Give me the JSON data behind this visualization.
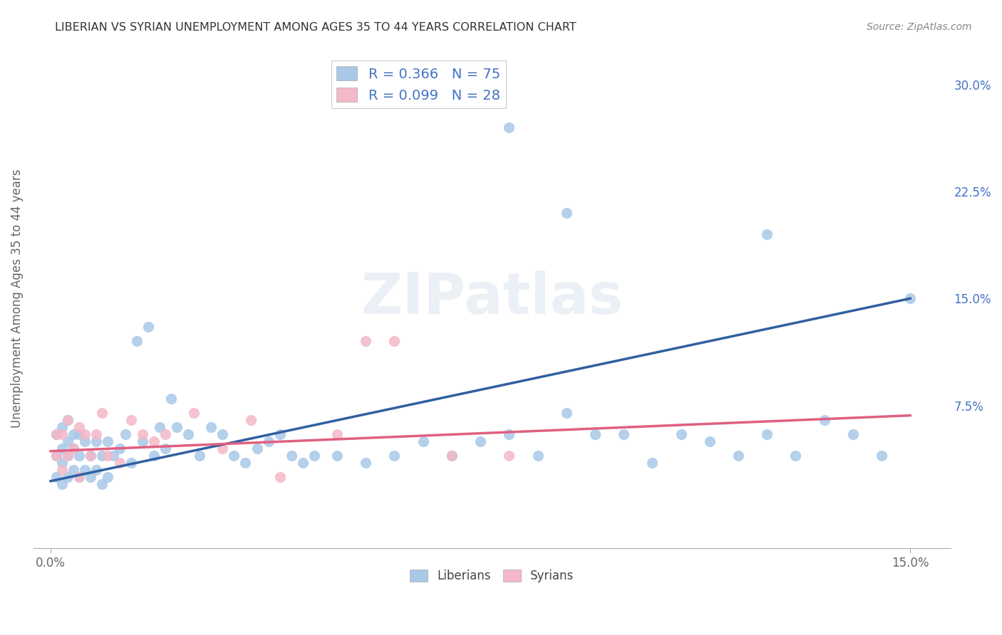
{
  "title": "LIBERIAN VS SYRIAN UNEMPLOYMENT AMONG AGES 35 TO 44 YEARS CORRELATION CHART",
  "source": "Source: ZipAtlas.com",
  "ylabel": "Unemployment Among Ages 35 to 44 years",
  "xlim": [
    0.0,
    0.15
  ],
  "ylim": [
    0.0,
    0.32
  ],
  "xtick_labels": [
    "0.0%",
    "15.0%"
  ],
  "ytick_labels": [
    "7.5%",
    "15.0%",
    "22.5%",
    "30.0%"
  ],
  "ytick_values": [
    0.075,
    0.15,
    0.225,
    0.3
  ],
  "liberian_color": "#a8c8e8",
  "syrian_color": "#f4b8c8",
  "liberian_line_color": "#3060a0",
  "syrian_line_color": "#e06080",
  "R_liberian": 0.366,
  "N_liberian": 75,
  "R_syrian": 0.099,
  "N_syrian": 28,
  "watermark_text": "ZIPatlas",
  "lib_line_x0": 0.0,
  "lib_line_y0": 0.022,
  "lib_line_x1": 0.15,
  "lib_line_y1": 0.15,
  "syr_line_x0": 0.0,
  "syr_line_y0": 0.043,
  "syr_line_x1": 0.15,
  "syr_line_y1": 0.068,
  "liberian_x": [
    0.001,
    0.001,
    0.001,
    0.002,
    0.002,
    0.002,
    0.002,
    0.003,
    0.003,
    0.003,
    0.003,
    0.004,
    0.004,
    0.004,
    0.005,
    0.005,
    0.005,
    0.006,
    0.006,
    0.007,
    0.007,
    0.008,
    0.008,
    0.009,
    0.009,
    0.01,
    0.01,
    0.011,
    0.012,
    0.013,
    0.014,
    0.015,
    0.016,
    0.017,
    0.018,
    0.019,
    0.02,
    0.021,
    0.022,
    0.024,
    0.026,
    0.028,
    0.03,
    0.032,
    0.034,
    0.036,
    0.038,
    0.04,
    0.042,
    0.044,
    0.046,
    0.05,
    0.055,
    0.06,
    0.065,
    0.07,
    0.075,
    0.08,
    0.085,
    0.09,
    0.095,
    0.1,
    0.105,
    0.11,
    0.115,
    0.12,
    0.125,
    0.13,
    0.135,
    0.14,
    0.145,
    0.15,
    0.08,
    0.09,
    0.125
  ],
  "liberian_y": [
    0.025,
    0.04,
    0.055,
    0.02,
    0.035,
    0.045,
    0.06,
    0.025,
    0.04,
    0.05,
    0.065,
    0.03,
    0.045,
    0.055,
    0.025,
    0.04,
    0.055,
    0.03,
    0.05,
    0.025,
    0.04,
    0.03,
    0.05,
    0.02,
    0.04,
    0.025,
    0.05,
    0.04,
    0.045,
    0.055,
    0.035,
    0.12,
    0.05,
    0.13,
    0.04,
    0.06,
    0.045,
    0.08,
    0.06,
    0.055,
    0.04,
    0.06,
    0.055,
    0.04,
    0.035,
    0.045,
    0.05,
    0.055,
    0.04,
    0.035,
    0.04,
    0.04,
    0.035,
    0.04,
    0.05,
    0.04,
    0.05,
    0.055,
    0.04,
    0.07,
    0.055,
    0.055,
    0.035,
    0.055,
    0.05,
    0.04,
    0.055,
    0.04,
    0.065,
    0.055,
    0.04,
    0.15,
    0.27,
    0.21,
    0.195
  ],
  "syrian_x": [
    0.001,
    0.001,
    0.002,
    0.002,
    0.003,
    0.003,
    0.004,
    0.005,
    0.005,
    0.006,
    0.007,
    0.008,
    0.009,
    0.01,
    0.012,
    0.014,
    0.016,
    0.018,
    0.02,
    0.025,
    0.03,
    0.035,
    0.04,
    0.05,
    0.055,
    0.06,
    0.07,
    0.08
  ],
  "syrian_y": [
    0.04,
    0.055,
    0.03,
    0.055,
    0.04,
    0.065,
    0.045,
    0.025,
    0.06,
    0.055,
    0.04,
    0.055,
    0.07,
    0.04,
    0.035,
    0.065,
    0.055,
    0.05,
    0.055,
    0.07,
    0.045,
    0.065,
    0.025,
    0.055,
    0.12,
    0.12,
    0.04,
    0.04
  ]
}
